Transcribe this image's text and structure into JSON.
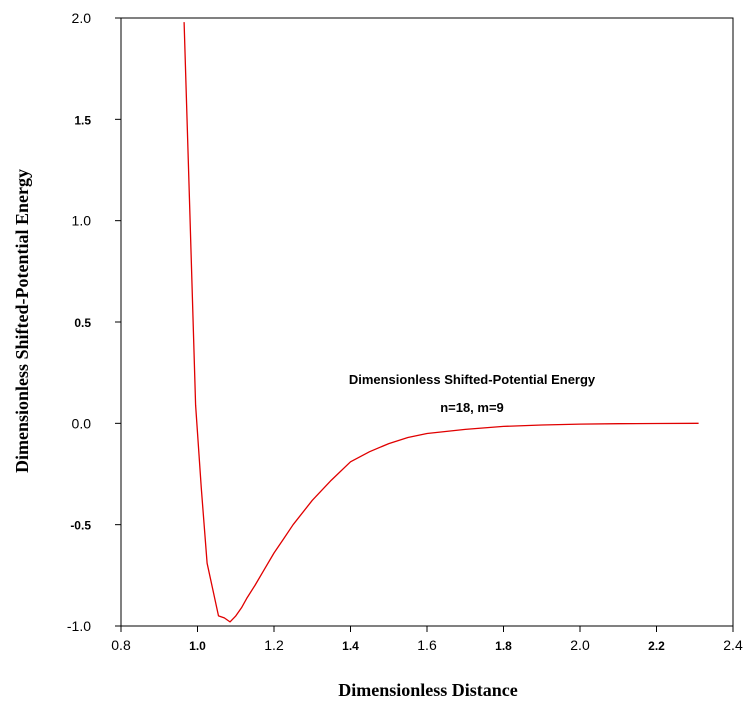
{
  "chart_data": {
    "type": "line",
    "title": "",
    "xlabel": "Dimensionless Distance",
    "ylabel": "Dimensionless Shifted-Potential Energy",
    "xlim": [
      0.8,
      2.4
    ],
    "ylim": [
      -1.0,
      2.0
    ],
    "x_ticks": [
      {
        "value": 0.8,
        "label": "0.8",
        "bold": false
      },
      {
        "value": 1.0,
        "label": "1.0",
        "bold": true
      },
      {
        "value": 1.2,
        "label": "1.2",
        "bold": false
      },
      {
        "value": 1.4,
        "label": "1.4",
        "bold": true
      },
      {
        "value": 1.6,
        "label": "1.6",
        "bold": false
      },
      {
        "value": 1.8,
        "label": "1.8",
        "bold": true
      },
      {
        "value": 2.0,
        "label": "2.0",
        "bold": false
      },
      {
        "value": 2.2,
        "label": "2.2",
        "bold": true
      },
      {
        "value": 2.4,
        "label": "2.4",
        "bold": false
      }
    ],
    "y_ticks": [
      {
        "value": -1.0,
        "label": "-1.0",
        "bold": false
      },
      {
        "value": -0.5,
        "label": "-0.5",
        "bold": true
      },
      {
        "value": 0.0,
        "label": "0.0",
        "bold": false
      },
      {
        "value": 0.5,
        "label": "0.5",
        "bold": true
      },
      {
        "value": 1.0,
        "label": "1.0",
        "bold": false
      },
      {
        "value": 1.5,
        "label": "1.5",
        "bold": true
      },
      {
        "value": 2.0,
        "label": "2.0",
        "bold": false
      }
    ],
    "grid": false,
    "annotations": [
      "Dimensionless Shifted-Potential Energy",
      "n=18, m=9"
    ],
    "series": [
      {
        "color": "#e00000",
        "x": [
          0.965,
          0.98,
          0.995,
          1.01,
          1.025,
          1.04,
          1.055,
          1.07,
          1.085,
          1.1,
          1.115,
          1.13,
          1.15,
          1.175,
          1.2,
          1.225,
          1.25,
          1.3,
          1.35,
          1.4,
          1.45,
          1.5,
          1.55,
          1.6,
          1.7,
          1.8,
          1.9,
          2.0,
          2.1,
          2.2,
          2.31
        ],
        "y": [
          1.98,
          1.05,
          0.09,
          -0.32,
          -0.69,
          -0.82,
          -0.95,
          -0.96,
          -0.98,
          -0.95,
          -0.91,
          -0.86,
          -0.8,
          -0.72,
          -0.64,
          -0.57,
          -0.5,
          -0.38,
          -0.28,
          -0.19,
          -0.14,
          -0.1,
          -0.07,
          -0.05,
          -0.03,
          -0.015,
          -0.008,
          -0.004,
          -0.002,
          -0.001,
          0.0
        ]
      }
    ]
  }
}
